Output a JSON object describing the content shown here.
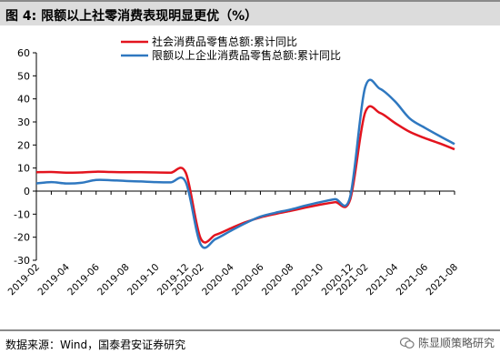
{
  "figure": {
    "title": "图 4:  限额以上社零消费表现明显更优（%）",
    "source": "数据来源：Wind，国泰君安证券研究",
    "watermark": "陈显顺策略研究"
  },
  "colors": {
    "series1": "#e3141e",
    "series2": "#2f78c0",
    "title_bg": "#dcdcdc",
    "rule": "#8a8a8a"
  },
  "chart_data": {
    "type": "line",
    "ylim": [
      -30,
      60
    ],
    "yticks": [
      -30,
      -20,
      -10,
      0,
      10,
      20,
      30,
      40,
      50,
      60
    ],
    "x": [
      "2019-02",
      "2019-03",
      "2019-04",
      "2019-05",
      "2019-06",
      "2019-07",
      "2019-08",
      "2019-09",
      "2019-10",
      "2019-11",
      "2019-12",
      "2020-02",
      "2020-03",
      "2020-04",
      "2020-05",
      "2020-06",
      "2020-07",
      "2020-08",
      "2020-09",
      "2020-10",
      "2020-11",
      "2020-12",
      "2021-02",
      "2021-03",
      "2021-04",
      "2021-05",
      "2021-06",
      "2021-07",
      "2021-08"
    ],
    "xtick_labels": [
      "2019-02",
      "2019-04",
      "2019-06",
      "2019-08",
      "2019-10",
      "2019-12",
      "2020-02",
      "2020-04",
      "2020-06",
      "2020-08",
      "2020-10",
      "2020-12",
      "2021-02",
      "2021-04",
      "2021-06",
      "2021-08"
    ],
    "legend_position": "top",
    "series": [
      {
        "name": "社会消费品零售总额:累计同比",
        "values": [
          8.2,
          8.3,
          8.0,
          8.1,
          8.4,
          8.3,
          8.2,
          8.2,
          8.1,
          8.0,
          8.0,
          -20.5,
          -19.0,
          -16.2,
          -13.5,
          -11.4,
          -9.9,
          -8.6,
          -7.2,
          -5.9,
          -4.8,
          -3.9,
          33.8,
          33.9,
          29.6,
          25.7,
          23.0,
          20.7,
          18.1
        ]
      },
      {
        "name": "限额以上企业消费品零售总额:累计同比",
        "values": [
          3.3,
          3.9,
          3.3,
          3.6,
          4.8,
          4.7,
          4.4,
          4.2,
          3.9,
          3.8,
          3.9,
          -23.1,
          -20.8,
          -17.3,
          -13.9,
          -11.1,
          -9.4,
          -8.0,
          -6.3,
          -4.8,
          -3.5,
          -2.7,
          44.6,
          44.4,
          39.0,
          31.5,
          27.5,
          23.9,
          20.4
        ]
      }
    ]
  }
}
